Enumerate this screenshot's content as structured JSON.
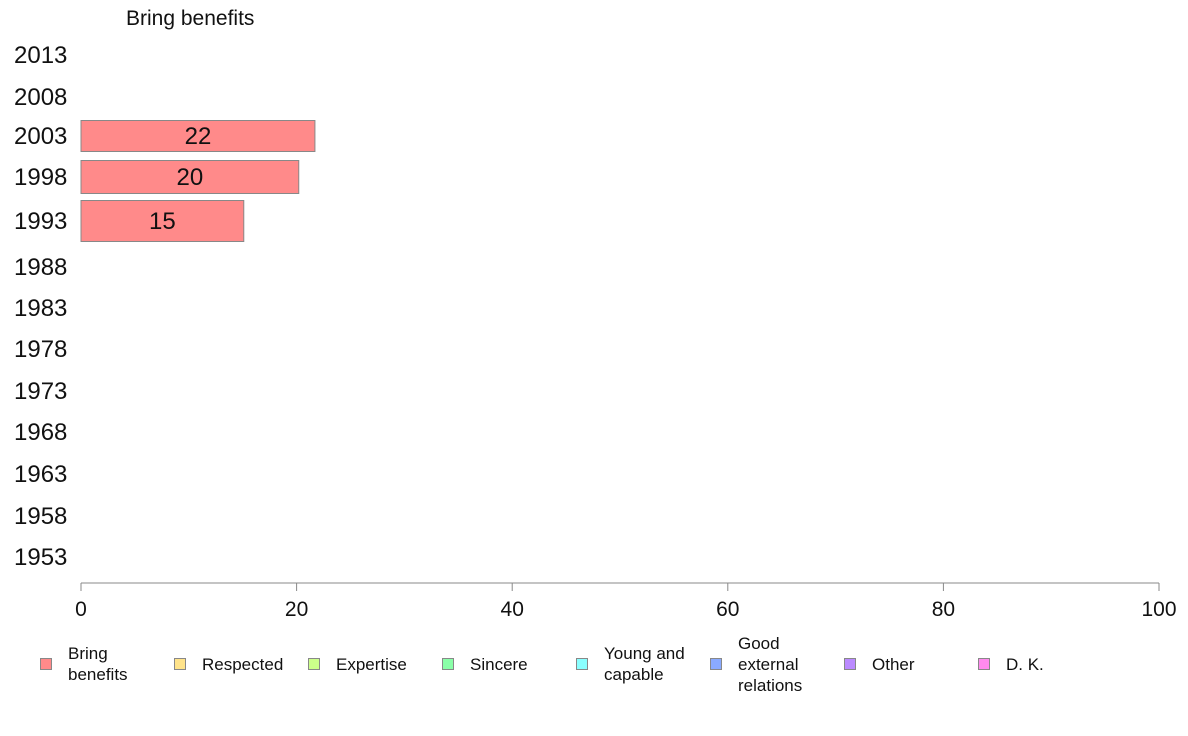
{
  "chart_data": {
    "type": "bar",
    "orientation": "horizontal",
    "title": "Bring benefits",
    "xlabel": "",
    "ylabel": "",
    "xlim": [
      0,
      100
    ],
    "xticks": [
      "0",
      "20",
      "40",
      "60",
      "80",
      "100"
    ],
    "categories": [
      "2013",
      "2008",
      "2003",
      "1998",
      "1993",
      "1988",
      "1983",
      "1978",
      "1973",
      "1968",
      "1963",
      "1958",
      "1953"
    ],
    "series": [
      {
        "name": "Bring benefits",
        "color": "#ff8a8a",
        "values": [
          null,
          null,
          21.7,
          20.2,
          15.1,
          null,
          null,
          null,
          null,
          null,
          null,
          null,
          null
        ],
        "labels": [
          "",
          "",
          "22",
          "20",
          "15",
          "",
          "",
          "",
          "",
          "",
          "",
          "",
          ""
        ]
      }
    ],
    "grid": false,
    "legend_position": "bottom",
    "legend": [
      {
        "label": "Bring benefits",
        "color": "#ff8a8a"
      },
      {
        "label": "Respected",
        "color": "#ffe38a"
      },
      {
        "label": "Expertise",
        "color": "#ccff8a"
      },
      {
        "label": "Sincere",
        "color": "#8affa8"
      },
      {
        "label": "Young and capable",
        "color": "#8affff"
      },
      {
        "label": "Good external relations",
        "color": "#8aaaff"
      },
      {
        "label": "Other",
        "color": "#bb8aff"
      },
      {
        "label": "D. K.",
        "color": "#ff8aee"
      }
    ]
  }
}
